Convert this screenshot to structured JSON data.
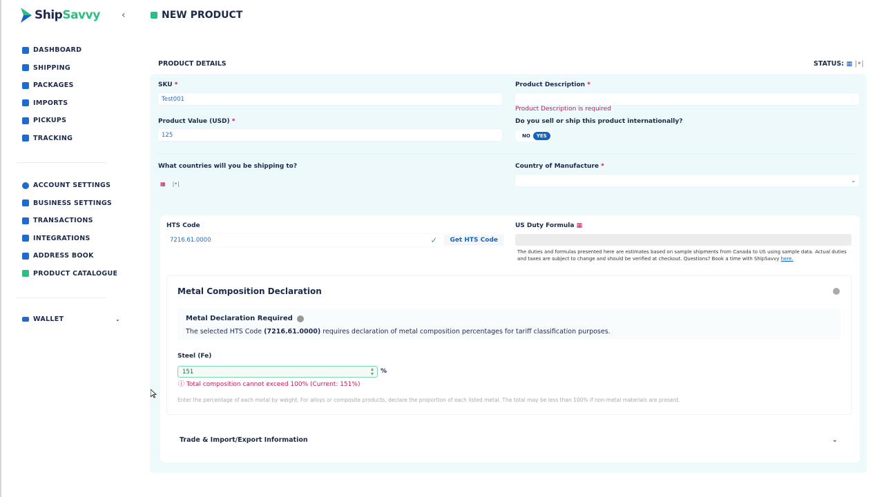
{
  "brand": {
    "name_part1": "Ship",
    "name_part2": "Savvy",
    "accent": "#2dbf7f",
    "primary": "#1565c0"
  },
  "header": {
    "title": "NEW PRODUCT",
    "collapse_icon": "chevron-left-icon"
  },
  "sidebar": {
    "items": [
      {
        "label": "DASHBOARD",
        "icon": "home-icon"
      },
      {
        "label": "SHIPPING",
        "icon": "box-icon"
      },
      {
        "label": "PACKAGES",
        "icon": "packages-icon"
      },
      {
        "label": "IMPORTS",
        "icon": "imports-icon"
      },
      {
        "label": "PICKUPS",
        "icon": "pickup-icon"
      },
      {
        "label": "TRACKING",
        "icon": "tracking-icon"
      }
    ],
    "settings": [
      {
        "label": "ACCOUNT SETTINGS",
        "icon": "user-circle-icon"
      },
      {
        "label": "BUSINESS SETTINGS",
        "icon": "business-icon"
      },
      {
        "label": "TRANSACTIONS",
        "icon": "document-icon"
      },
      {
        "label": "INTEGRATIONS",
        "icon": "integrations-icon"
      },
      {
        "label": "ADDRESS BOOK",
        "icon": "address-book-icon"
      },
      {
        "label": "PRODUCT CATALOGUE",
        "icon": "folder-icon"
      }
    ],
    "wallet": {
      "label": "WALLET",
      "icon": "wallet-icon"
    }
  },
  "product": {
    "section_title": "PRODUCT DETAILS",
    "status_label": "STATUS:",
    "sku": {
      "label": "SKU",
      "value": "Test001"
    },
    "value": {
      "label": "Product Value (USD)",
      "value": "125"
    },
    "description": {
      "label": "Product Description",
      "value": "",
      "error": "Product Description is required"
    },
    "international": {
      "label": "Do you sell or ship this product internationally?",
      "no": "NO",
      "yes": "YES",
      "selected": "YES"
    },
    "countries": {
      "label": "What countries will you be shipping to?"
    },
    "manufacture": {
      "label": "Country of Manufacture",
      "value": ""
    },
    "hts": {
      "label": "HTS Code",
      "value": "7216.61.0000",
      "button": "Get HTS Code"
    },
    "duty": {
      "label": "US Duty Formula",
      "value": "",
      "disclaimer": "The duties and formulas presented here are estimates based on sample shipments from Canada to US using sample data. Actual duties and taxes are subject to change and should be verified at checkout. Questions? Book a time with ShipSavvy",
      "link": "here."
    },
    "metal": {
      "title": "Metal Composition Declaration",
      "notice_title": "Metal Declaration Required",
      "notice_pre": "The selected HTS Code ",
      "notice_code": "(7216.61.0000)",
      "notice_post": " requires declaration of metal composition percentages for tariff classification purposes.",
      "steel_label": "Steel (Fe)",
      "steel_value": "151",
      "unit": "%",
      "error": "Total composition cannot exceed 100% (Current: 151%)",
      "hint": "Enter the percentage of each metal by weight. For alloys or composite products, declare the proportion of each listed metal. The total may be less than 100% if non-metal materials are present."
    },
    "trade": {
      "label": "Trade & Import/Export Information"
    }
  }
}
